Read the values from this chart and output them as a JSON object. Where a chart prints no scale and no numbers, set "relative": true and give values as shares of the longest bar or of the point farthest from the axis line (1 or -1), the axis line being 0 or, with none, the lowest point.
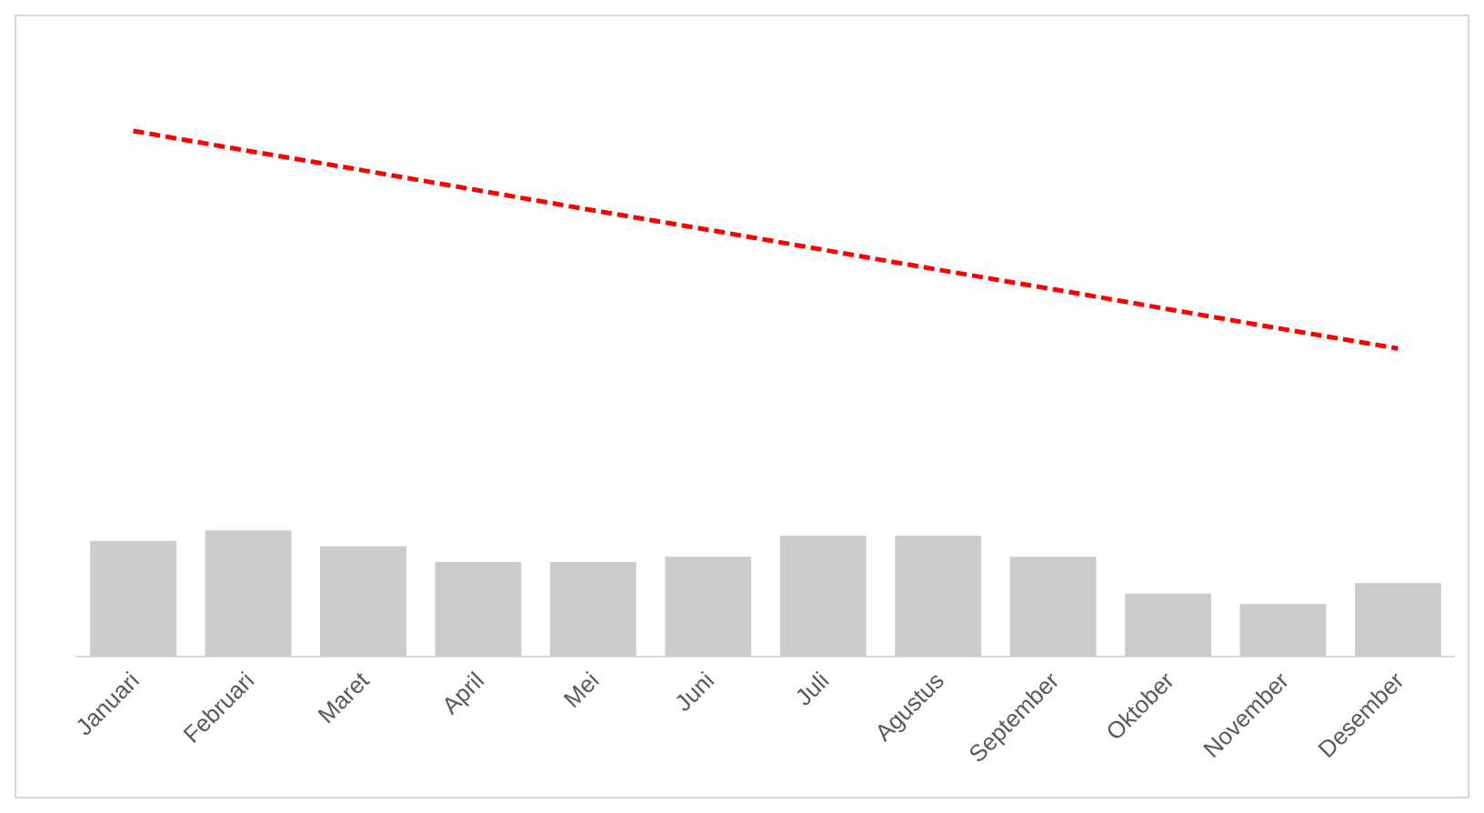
{
  "chart_data": {
    "type": "bar",
    "relative": true,
    "categories": [
      "Januari",
      "Februari",
      "Maret",
      "April",
      "Mei",
      "Juni",
      "Juli",
      "Agustus",
      "September",
      "Oktober",
      "November",
      "Desember"
    ],
    "series": [
      {
        "color": "#cccccc",
        "values": [
          0.22,
          0.24,
          0.21,
          0.18,
          0.18,
          0.19,
          0.23,
          0.23,
          0.19,
          0.12,
          0.1,
          0.14
        ]
      },
      {
        "type": "line",
        "color": "#ff0000",
        "line_style": "dashed",
        "values": [
          1,
          0.962,
          0.925,
          0.887,
          0.849,
          0.812,
          0.774,
          0.736,
          0.699,
          0.661,
          0.623,
          0.586
        ]
      }
    ],
    "grid": false,
    "legend": false
  }
}
